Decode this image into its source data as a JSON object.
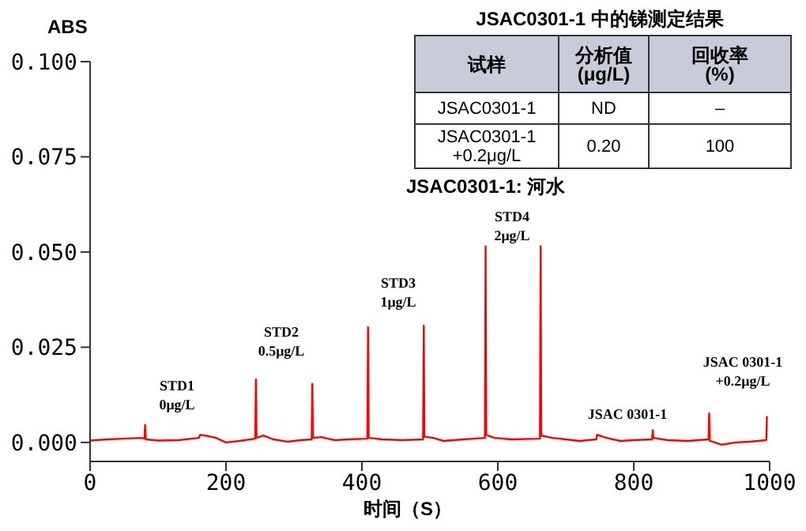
{
  "chart_data": {
    "type": "line",
    "xlabel": "时间（S）",
    "ylabel": "ABS",
    "xlim": [
      0,
      1000
    ],
    "xticks": [
      0,
      200,
      400,
      600,
      800,
      1000
    ],
    "ylim": [
      -0.005,
      0.1
    ],
    "yticks": [
      {
        "value": 0,
        "label": "0.000"
      },
      {
        "value": 0.025,
        "label": "0.025"
      },
      {
        "value": 0.05,
        "label": "0.050"
      },
      {
        "value": 0.075,
        "label": "0.075"
      },
      {
        "value": 0.1,
        "label": "0.100"
      }
    ],
    "x": [
      0,
      25,
      50,
      75,
      80,
      81,
      82,
      100,
      130,
      160,
      162,
      170,
      185,
      200,
      220,
      243,
      244,
      245,
      255,
      270,
      290,
      310,
      326,
      327,
      328,
      340,
      360,
      380,
      408,
      409,
      410,
      430,
      460,
      490,
      491,
      492,
      505,
      520,
      550,
      581,
      582,
      583,
      595,
      620,
      662,
      663,
      664,
      680,
      700,
      720,
      745,
      746,
      760,
      780,
      800,
      827,
      828,
      829,
      850,
      880,
      910,
      911,
      912,
      930,
      950,
      970,
      995,
      996
    ],
    "series": [
      {
        "color": "#ff0000",
        "values": [
          0.0005,
          0.0008,
          0.001,
          0.0012,
          0.001,
          0.0046,
          0.0008,
          0.0005,
          0.0006,
          0.0012,
          0.002,
          0.0018,
          0.0012,
          0,
          0.0004,
          0.001,
          0.0166,
          0.0012,
          0.0018,
          0.0008,
          0.0002,
          0.0006,
          0.0008,
          0.0154,
          0.0012,
          0.0014,
          0.0006,
          0.0008,
          0.001,
          0.0303,
          0.0012,
          0.0008,
          0.0006,
          0.0008,
          0.0307,
          0.0015,
          0.0012,
          0.0004,
          0.0008,
          0.0012,
          0.0515,
          0.002,
          0.0012,
          0.0008,
          0.001,
          0.0515,
          0.0018,
          0.0012,
          0.0008,
          0.0004,
          0.0008,
          0.002,
          0.0012,
          0.0004,
          0.0006,
          0.0008,
          0.0032,
          0.0012,
          0.0006,
          0.0004,
          0.0008,
          0.0076,
          0.0004,
          -0.0006,
          0,
          0.0002,
          0.0006,
          0.0069
        ]
      }
    ],
    "annotations": [
      "JSAC0301-1 中的锑测定结果",
      "试样",
      "分析值\n(μg/L)",
      "回收率\n(%)",
      "JSAC0301-1",
      "ND",
      "–",
      "JSAC0301-1\n+0.2μg/L",
      "0.20",
      "100",
      "JSAC0301-1: 河水",
      "STD1\n0μg/L",
      "STD2\n0.5μg/L",
      "STD3\n1μg/L",
      "STD4\n2μg/L",
      "JSAC 0301-1",
      "JSAC 0301-1\n+0.2μg/L"
    ]
  }
}
